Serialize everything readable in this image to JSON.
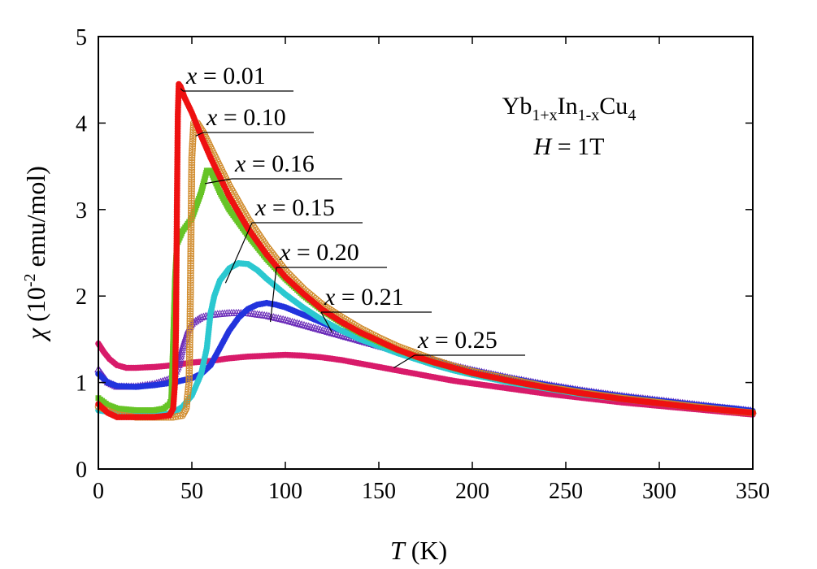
{
  "chart_data": {
    "type": "scatter",
    "title": "",
    "xlabel": {
      "var": "T",
      "unit": " (K)"
    },
    "ylabel": {
      "var": "χ",
      "rest": " (10",
      "exp": "-2",
      "unit": " emu/mol)"
    },
    "xlim": [
      0,
      350
    ],
    "ylim": [
      0,
      5
    ],
    "xticks": [
      "0",
      "50",
      "100",
      "150",
      "200",
      "250",
      "300",
      "350"
    ],
    "yticks": [
      "0",
      "1",
      "2",
      "3",
      "4",
      "5"
    ],
    "grid": false,
    "info": {
      "compound": {
        "base": "Yb",
        "sub1": "1+x",
        "mid": "In",
        "sub2": "1-x",
        "end": "Cu",
        "sub3": "4"
      },
      "field": {
        "var": "H",
        "rest": " = 1T"
      }
    },
    "series": [
      {
        "name": "x = 0.01",
        "var": "x",
        "text": " = 0.01",
        "color": "#ee1111",
        "marker": "filled-circle",
        "points": [
          [
            0,
            0.75
          ],
          [
            5,
            0.65
          ],
          [
            10,
            0.6
          ],
          [
            20,
            0.6
          ],
          [
            30,
            0.6
          ],
          [
            38,
            0.62
          ],
          [
            40,
            0.7
          ],
          [
            41,
            1.0
          ],
          [
            41.5,
            1.6
          ],
          [
            42,
            3.0
          ],
          [
            42.5,
            4.1
          ],
          [
            43,
            4.45
          ],
          [
            44,
            4.42
          ],
          [
            46,
            4.3
          ],
          [
            50,
            4.12
          ],
          [
            55,
            3.85
          ],
          [
            60,
            3.6
          ],
          [
            70,
            3.15
          ],
          [
            80,
            2.78
          ],
          [
            90,
            2.48
          ],
          [
            100,
            2.22
          ],
          [
            110,
            2.02
          ],
          [
            120,
            1.84
          ],
          [
            130,
            1.7
          ],
          [
            140,
            1.58
          ],
          [
            150,
            1.48
          ],
          [
            160,
            1.38
          ],
          [
            170,
            1.3
          ],
          [
            180,
            1.23
          ],
          [
            190,
            1.17
          ],
          [
            200,
            1.11
          ],
          [
            220,
            1.02
          ],
          [
            240,
            0.94
          ],
          [
            260,
            0.87
          ],
          [
            280,
            0.81
          ],
          [
            300,
            0.76
          ],
          [
            320,
            0.71
          ],
          [
            340,
            0.67
          ],
          [
            350,
            0.65
          ]
        ],
        "label_pos": [
          225,
          95
        ],
        "arrow_to": [
          44,
          4.4
        ]
      },
      {
        "name": "x = 0.10",
        "var": "x",
        "text": " = 0.10",
        "color": "#d08a2a",
        "marker": "open-circle",
        "points": [
          [
            0,
            0.72
          ],
          [
            10,
            0.63
          ],
          [
            20,
            0.6
          ],
          [
            30,
            0.6
          ],
          [
            40,
            0.6
          ],
          [
            45,
            0.62
          ],
          [
            47,
            0.7
          ],
          [
            48.5,
            1.0
          ],
          [
            49,
            1.6
          ],
          [
            49.5,
            2.6
          ],
          [
            50,
            3.6
          ],
          [
            51,
            4.0
          ],
          [
            53,
            4.0
          ],
          [
            56,
            3.9
          ],
          [
            60,
            3.72
          ],
          [
            70,
            3.28
          ],
          [
            80,
            2.9
          ],
          [
            90,
            2.58
          ],
          [
            100,
            2.3
          ],
          [
            110,
            2.08
          ],
          [
            120,
            1.9
          ],
          [
            130,
            1.76
          ],
          [
            140,
            1.63
          ],
          [
            150,
            1.52
          ],
          [
            160,
            1.42
          ],
          [
            170,
            1.34
          ],
          [
            180,
            1.26
          ],
          [
            190,
            1.19
          ],
          [
            200,
            1.13
          ],
          [
            220,
            1.04
          ],
          [
            240,
            0.95
          ],
          [
            260,
            0.88
          ],
          [
            280,
            0.82
          ],
          [
            300,
            0.77
          ],
          [
            320,
            0.72
          ],
          [
            340,
            0.67
          ],
          [
            350,
            0.65
          ]
        ],
        "label_pos": [
          250,
          146
        ],
        "arrow_to": [
          52,
          3.85
        ]
      },
      {
        "name": "x = 0.16",
        "var": "x",
        "text": " = 0.16",
        "color": "#66c426",
        "marker": "filled-square",
        "points": [
          [
            0,
            0.82
          ],
          [
            5,
            0.74
          ],
          [
            10,
            0.7
          ],
          [
            20,
            0.68
          ],
          [
            30,
            0.68
          ],
          [
            35,
            0.7
          ],
          [
            38,
            0.75
          ],
          [
            39,
            0.8
          ],
          [
            40,
            1.5
          ],
          [
            41,
            2.2
          ],
          [
            42,
            2.6
          ],
          [
            45,
            2.75
          ],
          [
            50,
            2.9
          ],
          [
            55,
            3.2
          ],
          [
            58,
            3.45
          ],
          [
            60,
            3.45
          ],
          [
            62,
            3.35
          ],
          [
            65,
            3.2
          ],
          [
            70,
            3.0
          ],
          [
            80,
            2.7
          ],
          [
            90,
            2.43
          ],
          [
            100,
            2.2
          ],
          [
            110,
            2.0
          ],
          [
            120,
            1.83
          ],
          [
            130,
            1.69
          ],
          [
            140,
            1.57
          ],
          [
            150,
            1.47
          ],
          [
            160,
            1.38
          ],
          [
            170,
            1.3
          ],
          [
            180,
            1.23
          ],
          [
            190,
            1.17
          ],
          [
            200,
            1.11
          ],
          [
            220,
            1.02
          ],
          [
            240,
            0.94
          ],
          [
            260,
            0.87
          ],
          [
            280,
            0.81
          ],
          [
            300,
            0.76
          ],
          [
            320,
            0.71
          ],
          [
            340,
            0.67
          ],
          [
            350,
            0.65
          ]
        ],
        "label_pos": [
          285,
          203
        ],
        "arrow_to": [
          57,
          3.3
        ]
      },
      {
        "name": "x = 0.15",
        "var": "x",
        "text": " = 0.15",
        "color": "#2bc8d0",
        "marker": "filled-circle",
        "points": [
          [
            0,
            0.68
          ],
          [
            10,
            0.64
          ],
          [
            20,
            0.62
          ],
          [
            30,
            0.62
          ],
          [
            40,
            0.65
          ],
          [
            45,
            0.72
          ],
          [
            50,
            0.85
          ],
          [
            55,
            1.1
          ],
          [
            58,
            1.4
          ],
          [
            60,
            1.8
          ],
          [
            62,
            2.0
          ],
          [
            65,
            2.18
          ],
          [
            70,
            2.32
          ],
          [
            75,
            2.38
          ],
          [
            80,
            2.37
          ],
          [
            85,
            2.3
          ],
          [
            90,
            2.2
          ],
          [
            100,
            2.02
          ],
          [
            110,
            1.86
          ],
          [
            120,
            1.72
          ],
          [
            130,
            1.6
          ],
          [
            140,
            1.5
          ],
          [
            150,
            1.42
          ],
          [
            160,
            1.34
          ],
          [
            170,
            1.27
          ],
          [
            180,
            1.2
          ],
          [
            190,
            1.14
          ],
          [
            200,
            1.09
          ],
          [
            220,
            1.0
          ],
          [
            240,
            0.93
          ],
          [
            260,
            0.86
          ],
          [
            280,
            0.81
          ],
          [
            300,
            0.76
          ],
          [
            320,
            0.71
          ],
          [
            340,
            0.67
          ],
          [
            350,
            0.65
          ]
        ],
        "label_pos": [
          310,
          257
        ],
        "arrow_to": [
          68,
          2.15
        ]
      },
      {
        "name": "x = 0.20",
        "var": "x",
        "text": " = 0.20",
        "color": "#2233dd",
        "marker": "filled-circle",
        "points": [
          [
            0,
            1.1
          ],
          [
            5,
            1.0
          ],
          [
            10,
            0.96
          ],
          [
            20,
            0.95
          ],
          [
            30,
            0.97
          ],
          [
            40,
            1.0
          ],
          [
            50,
            1.05
          ],
          [
            55,
            1.1
          ],
          [
            60,
            1.2
          ],
          [
            65,
            1.4
          ],
          [
            70,
            1.6
          ],
          [
            75,
            1.75
          ],
          [
            80,
            1.85
          ],
          [
            85,
            1.9
          ],
          [
            90,
            1.92
          ],
          [
            95,
            1.9
          ],
          [
            100,
            1.87
          ],
          [
            110,
            1.78
          ],
          [
            120,
            1.69
          ],
          [
            130,
            1.6
          ],
          [
            140,
            1.52
          ],
          [
            150,
            1.45
          ],
          [
            160,
            1.38
          ],
          [
            170,
            1.31
          ],
          [
            180,
            1.25
          ],
          [
            190,
            1.19
          ],
          [
            200,
            1.14
          ],
          [
            220,
            1.05
          ],
          [
            240,
            0.97
          ],
          [
            260,
            0.9
          ],
          [
            280,
            0.84
          ],
          [
            300,
            0.79
          ],
          [
            320,
            0.74
          ],
          [
            340,
            0.7
          ],
          [
            350,
            0.67
          ]
        ],
        "label_pos": [
          340,
          312
        ],
        "arrow_to": [
          92,
          1.7
        ]
      },
      {
        "name": "x = 0.21",
        "var": "x",
        "text": " = 0.21",
        "color": "#6a2bb8",
        "marker": "open-triangle",
        "points": [
          [
            0,
            1.15
          ],
          [
            5,
            1.0
          ],
          [
            10,
            0.95
          ],
          [
            20,
            0.95
          ],
          [
            30,
            0.98
          ],
          [
            40,
            1.05
          ],
          [
            43,
            1.2
          ],
          [
            45,
            1.4
          ],
          [
            48,
            1.6
          ],
          [
            50,
            1.68
          ],
          [
            55,
            1.75
          ],
          [
            60,
            1.78
          ],
          [
            70,
            1.8
          ],
          [
            80,
            1.8
          ],
          [
            90,
            1.77
          ],
          [
            100,
            1.72
          ],
          [
            110,
            1.66
          ],
          [
            120,
            1.6
          ],
          [
            130,
            1.54
          ],
          [
            140,
            1.48
          ],
          [
            150,
            1.42
          ],
          [
            160,
            1.36
          ],
          [
            170,
            1.3
          ],
          [
            180,
            1.25
          ],
          [
            190,
            1.19
          ],
          [
            200,
            1.14
          ],
          [
            220,
            1.05
          ],
          [
            240,
            0.97
          ],
          [
            260,
            0.9
          ],
          [
            280,
            0.84
          ],
          [
            300,
            0.79
          ],
          [
            320,
            0.74
          ],
          [
            340,
            0.69
          ],
          [
            350,
            0.67
          ]
        ],
        "label_pos": [
          395,
          367
        ],
        "arrow_to": [
          125,
          1.58
        ]
      },
      {
        "name": "x = 0.25",
        "var": "x",
        "text": " = 0.25",
        "color": "#d81b6a",
        "marker": "filled-circle",
        "points": [
          [
            0,
            1.45
          ],
          [
            3,
            1.35
          ],
          [
            6,
            1.27
          ],
          [
            10,
            1.2
          ],
          [
            15,
            1.17
          ],
          [
            20,
            1.17
          ],
          [
            30,
            1.18
          ],
          [
            40,
            1.2
          ],
          [
            50,
            1.23
          ],
          [
            60,
            1.25
          ],
          [
            70,
            1.28
          ],
          [
            80,
            1.3
          ],
          [
            90,
            1.31
          ],
          [
            100,
            1.32
          ],
          [
            110,
            1.31
          ],
          [
            120,
            1.29
          ],
          [
            130,
            1.26
          ],
          [
            140,
            1.22
          ],
          [
            150,
            1.18
          ],
          [
            160,
            1.14
          ],
          [
            170,
            1.1
          ],
          [
            180,
            1.06
          ],
          [
            190,
            1.02
          ],
          [
            200,
            0.99
          ],
          [
            220,
            0.93
          ],
          [
            240,
            0.87
          ],
          [
            260,
            0.82
          ],
          [
            280,
            0.77
          ],
          [
            300,
            0.73
          ],
          [
            320,
            0.69
          ],
          [
            340,
            0.65
          ],
          [
            350,
            0.63
          ]
        ],
        "label_pos": [
          510,
          420
        ],
        "arrow_to": [
          158,
          1.17
        ]
      }
    ]
  }
}
